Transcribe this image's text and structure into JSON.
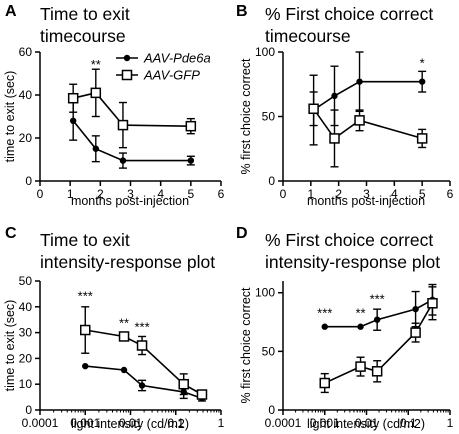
{
  "chart_data": [
    {
      "panel_label": "A",
      "type": "line",
      "title_lines": [
        "Time to exit",
        "timecourse"
      ],
      "xlabel": "months post-injection",
      "ylabel": "time to exit (sec)",
      "xscale": "linear",
      "xlim": [
        0,
        6
      ],
      "ylim": [
        0,
        60
      ],
      "xticks": [
        0,
        1,
        2,
        3,
        4,
        5,
        6
      ],
      "xtick_labels": [
        "0",
        "1",
        "2",
        "3",
        "4",
        "5",
        "6"
      ],
      "yticks": [
        0,
        20,
        40,
        60
      ],
      "ytick_labels": [
        "0",
        "20",
        "40",
        "60"
      ],
      "legend": {
        "placement": "top-right",
        "entries": [
          {
            "label": "AAV-Pde6a",
            "marker": "filled-circle"
          },
          {
            "label": "AAV-GFP",
            "marker": "open-square"
          }
        ]
      },
      "series": [
        {
          "name": "AAV-Pde6a",
          "marker": "filled-circle",
          "x": [
            1.1,
            1.85,
            2.75,
            5
          ],
          "y": [
            28,
            15,
            9.5,
            9.5
          ],
          "err": [
            9,
            6,
            3.5,
            2
          ]
        },
        {
          "name": "AAV-GFP",
          "marker": "open-square",
          "x": [
            1.1,
            1.85,
            2.75,
            5
          ],
          "y": [
            38.5,
            41,
            26,
            25.5
          ],
          "err": [
            6.5,
            11,
            10.5,
            3.5
          ]
        }
      ],
      "annotations": [
        {
          "text": "**",
          "x": 1.85,
          "y": 52
        }
      ]
    },
    {
      "panel_label": "B",
      "type": "line",
      "title_lines": [
        "% First choice correct",
        "timecourse"
      ],
      "xlabel": "months post-injection",
      "ylabel": "% first choice correct",
      "xscale": "linear",
      "xlim": [
        0,
        6
      ],
      "ylim": [
        0,
        100
      ],
      "xticks": [
        0,
        1,
        2,
        3,
        4,
        5,
        6
      ],
      "xtick_labels": [
        "0",
        "1",
        "2",
        "3",
        "4",
        "5",
        "6"
      ],
      "yticks": [
        0,
        50,
        100
      ],
      "ytick_labels": [
        "0",
        "50",
        "100"
      ],
      "series": [
        {
          "name": "AAV-Pde6a",
          "marker": "filled-circle",
          "x": [
            1.1,
            1.85,
            2.75,
            5
          ],
          "y": [
            55,
            66,
            77,
            77
          ],
          "err": [
            27,
            23,
            23,
            8
          ]
        },
        {
          "name": "AAV-GFP",
          "marker": "open-square",
          "x": [
            1.1,
            1.85,
            2.75,
            5
          ],
          "y": [
            56,
            33,
            47,
            33
          ],
          "err": [
            13,
            22,
            8,
            7
          ]
        }
      ],
      "annotations": [
        {
          "text": "*",
          "x": 5,
          "y": 88
        }
      ]
    },
    {
      "panel_label": "C",
      "type": "line",
      "title_lines": [
        "Time to exit",
        "intensity-response plot"
      ],
      "xlabel": "light intensity (cd/m2)",
      "ylabel": "time to exit (sec)",
      "xscale": "log",
      "xlim": [
        0.0001,
        1
      ],
      "ylim": [
        0,
        50
      ],
      "xticks": [
        0.0001,
        0.001,
        0.01,
        0.1,
        1
      ],
      "xtick_labels": [
        "0.0001",
        "0.001",
        "0.01",
        "0.1",
        "1"
      ],
      "yticks": [
        0,
        10,
        20,
        30,
        40,
        50
      ],
      "ytick_labels": [
        "0",
        "10",
        "20",
        "30",
        "40",
        "50"
      ],
      "series": [
        {
          "name": "AAV-Pde6a",
          "marker": "filled-circle",
          "x": [
            0.001,
            0.0072,
            0.018,
            0.15,
            0.38
          ],
          "y": [
            17,
            15.5,
            9.5,
            7,
            4.5
          ],
          "err": [
            0,
            0,
            2,
            2.5,
            1
          ]
        },
        {
          "name": "AAV-GFP",
          "marker": "open-square",
          "x": [
            0.001,
            0.0072,
            0.018,
            0.15,
            0.38
          ],
          "y": [
            31,
            28.5,
            25,
            10,
            6
          ],
          "err": [
            9,
            1.5,
            3.5,
            4,
            1.5
          ]
        }
      ],
      "annotations": [
        {
          "text": "***",
          "x": 0.001,
          "y": 42.5
        },
        {
          "text": "**",
          "x": 0.0072,
          "y": 32
        },
        {
          "text": "***",
          "x": 0.018,
          "y": 30.5
        }
      ]
    },
    {
      "panel_label": "D",
      "type": "line",
      "title_lines": [
        "% First choice correct",
        "intensity-response plot"
      ],
      "xlabel": "light intensity (cd/m2)",
      "ylabel": "% first choice correct",
      "xscale": "log",
      "xlim": [
        0.0001,
        1
      ],
      "ylim": [
        0,
        110
      ],
      "xticks": [
        0.0001,
        0.001,
        0.01,
        0.1,
        1
      ],
      "xtick_labels": [
        "0.0001",
        "0.001",
        "0.01",
        "0.1",
        "1"
      ],
      "yticks": [
        0,
        50,
        100
      ],
      "ytick_labels": [
        "0",
        "50",
        "100"
      ],
      "series": [
        {
          "name": "AAV-Pde6a",
          "marker": "filled-circle",
          "x": [
            0.001,
            0.0072,
            0.018,
            0.15,
            0.38
          ],
          "y": [
            71,
            71,
            77,
            86,
            94
          ],
          "err": [
            0,
            0,
            9,
            15,
            13
          ]
        },
        {
          "name": "AAV-GFP",
          "marker": "open-square",
          "x": [
            0.001,
            0.0072,
            0.018,
            0.15,
            0.38
          ],
          "y": [
            23,
            37,
            33,
            66,
            91
          ],
          "err": [
            8,
            8,
            9,
            8,
            14
          ]
        }
      ],
      "annotations": [
        {
          "text": "***",
          "x": 0.001,
          "y": 79
        },
        {
          "text": "**",
          "x": 0.0072,
          "y": 79
        },
        {
          "text": "***",
          "x": 0.018,
          "y": 91
        }
      ]
    }
  ]
}
